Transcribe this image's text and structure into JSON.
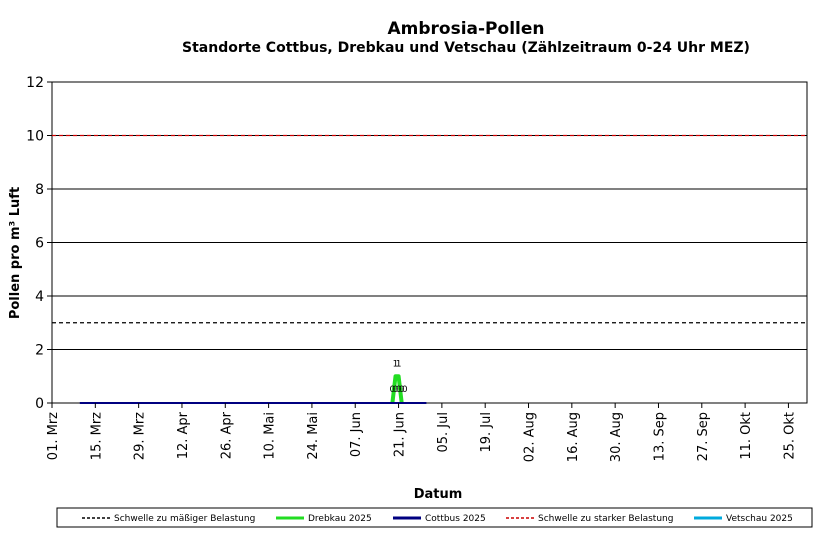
{
  "chart_data": {
    "type": "line",
    "title": "Ambrosia-Pollen",
    "subtitle": "Standorte Cottbus, Drebkau und Vetschau (Zählzeitraum 0-24 Uhr MEZ)",
    "xlabel": "Datum",
    "ylabel": "Pollen pro m³ Luft",
    "ylim": [
      0,
      12
    ],
    "yticks": [
      0,
      2,
      4,
      6,
      8,
      10,
      12
    ],
    "xlim": [
      "2025-03-01",
      "2025-10-31"
    ],
    "x_tick_dates": [
      "2025-03-01",
      "2025-03-15",
      "2025-03-29",
      "2025-04-12",
      "2025-04-26",
      "2025-05-10",
      "2025-05-24",
      "2025-06-07",
      "2025-06-21",
      "2025-07-05",
      "2025-07-19",
      "2025-08-02",
      "2025-08-16",
      "2025-08-30",
      "2025-09-13",
      "2025-09-27",
      "2025-10-11",
      "2025-10-25"
    ],
    "x_tick_labels": [
      "01. Mrz",
      "15. Mrz",
      "29. Mrz",
      "12. Apr",
      "26. Apr",
      "10. Mai",
      "24. Mai",
      "07. Jun",
      "21. Jun",
      "05. Jul",
      "19. Jul",
      "02. Aug",
      "16. Aug",
      "30. Aug",
      "13. Sep",
      "27. Sep",
      "11. Okt",
      "25. Okt"
    ],
    "grid": "horizontal",
    "thresholds": [
      {
        "name": "Schwelle zu mäßiger Belastung",
        "value": 3,
        "color": "#000000",
        "dash": "dashed"
      },
      {
        "name": "Schwelle zu starker Belastung",
        "value": 10,
        "color": "#cc0000",
        "dash": "dashed"
      }
    ],
    "series": [
      {
        "name": "Drebkau 2025",
        "color": "#22dd22",
        "x": [
          "2025-06-19",
          "2025-06-20",
          "2025-06-21",
          "2025-06-22"
        ],
        "values": [
          0,
          1,
          1,
          0
        ]
      },
      {
        "name": "Cottbus 2025",
        "color": "#000080",
        "x": [
          "2025-03-10",
          "2025-06-30"
        ],
        "values": [
          0,
          0
        ]
      },
      {
        "name": "Vetschau 2025",
        "color": "#00aadd",
        "x": [],
        "values": []
      }
    ],
    "data_labels": [
      {
        "x": "2025-06-19",
        "value": 0,
        "text": "0"
      },
      {
        "x": "2025-06-20",
        "value": 1,
        "text": "1"
      },
      {
        "x": "2025-06-20",
        "value": 0,
        "text": "0"
      },
      {
        "x": "2025-06-21",
        "value": 1,
        "text": "1"
      },
      {
        "x": "2025-06-21",
        "value": 0,
        "text": "0"
      },
      {
        "x": "2025-06-22",
        "value": 0,
        "text": "0"
      },
      {
        "x": "2025-06-23",
        "value": 0,
        "text": "0"
      }
    ],
    "legend": {
      "position": "bottom",
      "entries": [
        {
          "label": "Schwelle zu mäßiger Belastung",
          "color": "#000000",
          "style": "dashed"
        },
        {
          "label": "Drebkau 2025",
          "color": "#22dd22",
          "style": "solid"
        },
        {
          "label": "Cottbus 2025",
          "color": "#000080",
          "style": "solid"
        },
        {
          "label": "Schwelle zu starker Belastung",
          "color": "#cc0000",
          "style": "dashed"
        },
        {
          "label": "Vetschau 2025",
          "color": "#00aadd",
          "style": "solid"
        }
      ]
    }
  }
}
